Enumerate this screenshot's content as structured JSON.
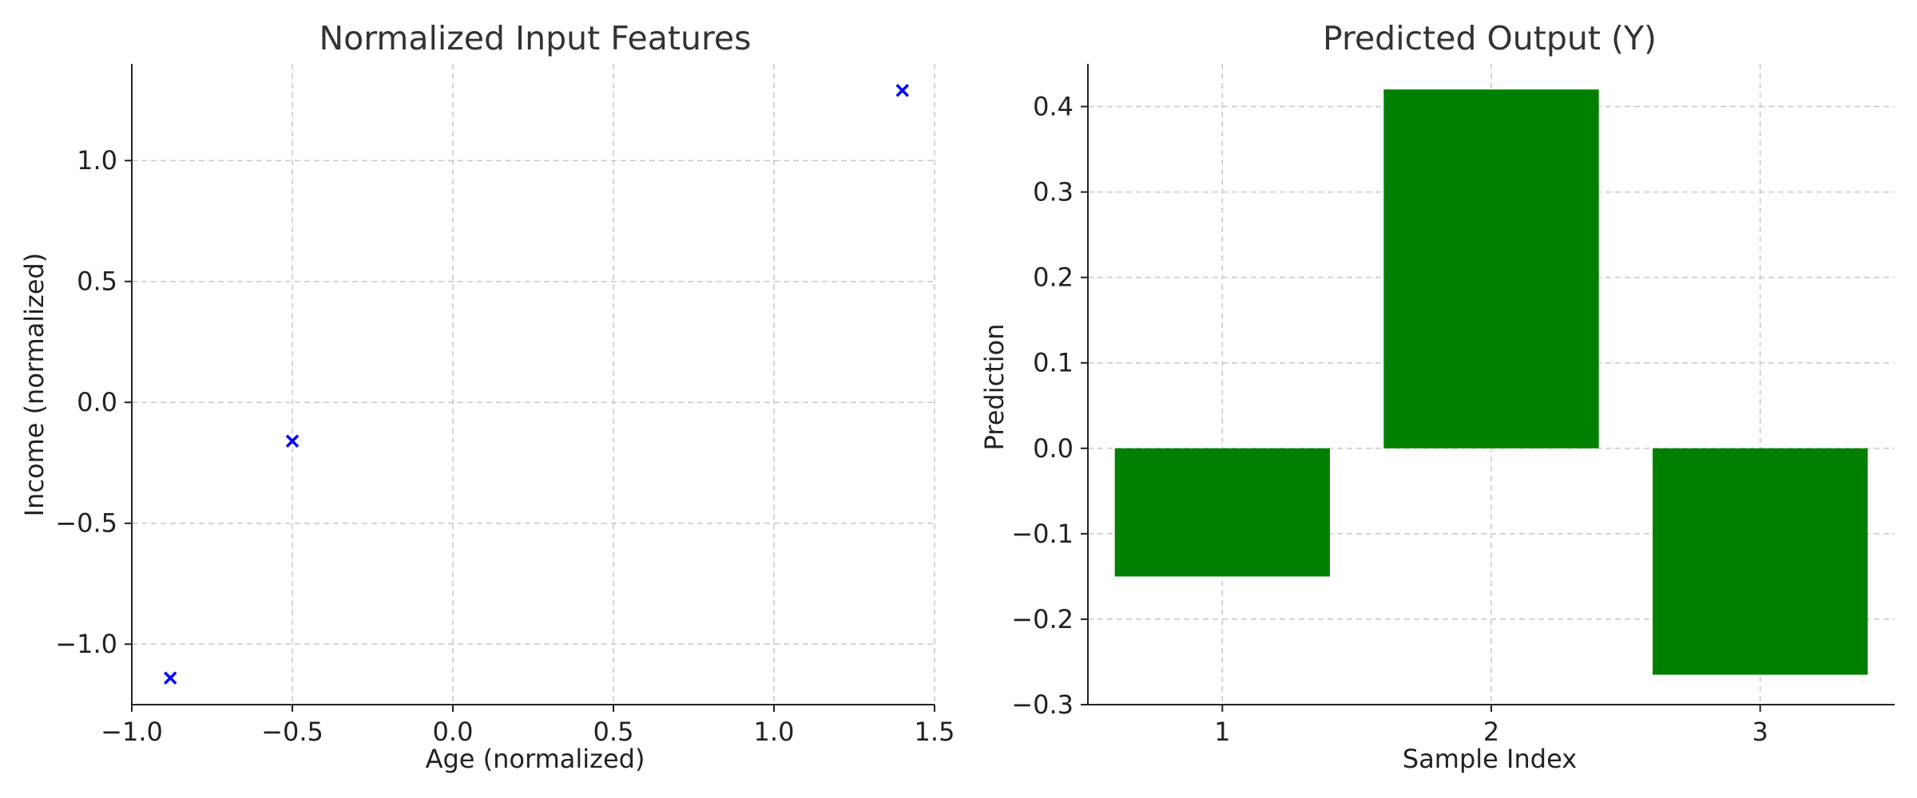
{
  "chart_data": [
    {
      "type": "scatter",
      "title": "Normalized Input Features",
      "xlabel": "Age (normalized)",
      "ylabel": "Income (normalized)",
      "xlim": [
        -1.0,
        1.5
      ],
      "ylim": [
        -1.25,
        1.4
      ],
      "xticks": [
        -1.0,
        -0.5,
        0.0,
        0.5,
        1.0,
        1.5
      ],
      "xtick_labels": [
        "−1.0",
        "−0.5",
        "0.0",
        "0.5",
        "1.0",
        "1.5"
      ],
      "yticks": [
        -1.0,
        -0.5,
        0.0,
        0.5,
        1.0
      ],
      "ytick_labels": [
        "−1.0",
        "−0.5",
        "0.0",
        "0.5",
        "1.0"
      ],
      "grid": true,
      "marker": "x",
      "color": "#0000ff",
      "points": [
        {
          "x": -0.88,
          "y": -1.14
        },
        {
          "x": -0.5,
          "y": -0.16
        },
        {
          "x": 1.4,
          "y": 1.29
        }
      ]
    },
    {
      "type": "bar",
      "title": "Predicted Output (Y)",
      "xlabel": "Sample Index",
      "ylabel": "Prediction",
      "categories": [
        "1",
        "2",
        "3"
      ],
      "values": [
        -0.15,
        0.42,
        -0.265
      ],
      "ylim": [
        -0.3,
        0.45
      ],
      "yticks": [
        -0.3,
        -0.2,
        -0.1,
        0.0,
        0.1,
        0.2,
        0.3,
        0.4
      ],
      "ytick_labels": [
        "−0.3",
        "−0.2",
        "−0.1",
        "0.0",
        "0.1",
        "0.2",
        "0.3",
        "0.4"
      ],
      "grid": true,
      "color": "#008000"
    }
  ]
}
